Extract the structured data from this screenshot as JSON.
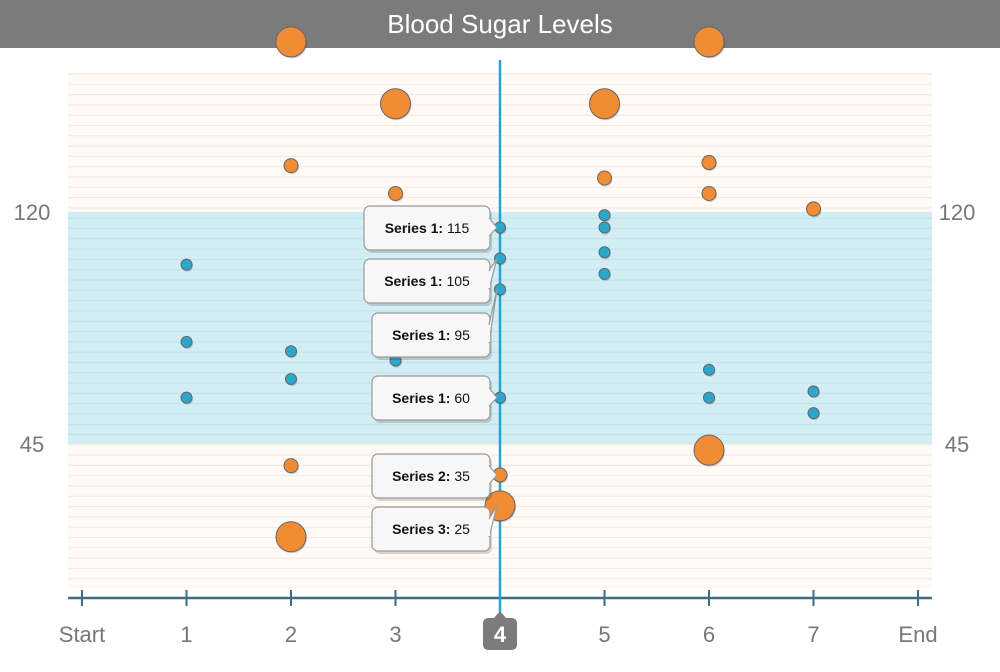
{
  "chart_data": {
    "type": "scatter",
    "title": "Blood Sugar Levels",
    "x_ticks": [
      "Start",
      "1",
      "2",
      "3",
      "4",
      "5",
      "6",
      "7",
      "End"
    ],
    "x_range": [
      0,
      8
    ],
    "y_range": [
      -10,
      190
    ],
    "y_ticks": [
      45,
      120
    ],
    "normal_band": [
      45,
      120
    ],
    "highlighted_x": "4",
    "colors": {
      "in_range": "#2aa7cd",
      "out_of_range": "#ef8c34",
      "band": "#d3edf4",
      "axis": "#3f6c7e",
      "crosshair": "#23a5cf"
    },
    "series": [
      {
        "name": "Series 1",
        "points": [
          {
            "x": 1,
            "y": 103
          },
          {
            "x": 1,
            "y": 78
          },
          {
            "x": 1,
            "y": 60
          },
          {
            "x": 2,
            "y": 75
          },
          {
            "x": 2,
            "y": 66
          },
          {
            "x": 3,
            "y": 72
          },
          {
            "x": 4,
            "y": 115
          },
          {
            "x": 4,
            "y": 105
          },
          {
            "x": 4,
            "y": 95
          },
          {
            "x": 4,
            "y": 60
          },
          {
            "x": 5,
            "y": 119
          },
          {
            "x": 5,
            "y": 115
          },
          {
            "x": 5,
            "y": 107
          },
          {
            "x": 5,
            "y": 100
          },
          {
            "x": 6,
            "y": 69
          },
          {
            "x": 6,
            "y": 60
          },
          {
            "x": 7,
            "y": 62
          },
          {
            "x": 7,
            "y": 55
          }
        ]
      },
      {
        "name": "Series 2",
        "points": [
          {
            "x": 2,
            "y": 135
          },
          {
            "x": 2,
            "y": 38
          },
          {
            "x": 3,
            "y": 126
          },
          {
            "x": 4,
            "y": 35
          },
          {
            "x": 5,
            "y": 131
          },
          {
            "x": 6,
            "y": 136
          },
          {
            "x": 6,
            "y": 126
          },
          {
            "x": 7,
            "y": 121
          }
        ]
      },
      {
        "name": "Series 3",
        "points": [
          {
            "x": 2,
            "y": 175
          },
          {
            "x": 2,
            "y": 15
          },
          {
            "x": 3,
            "y": 155
          },
          {
            "x": 3,
            "y": 33
          },
          {
            "x": 4,
            "y": 25
          },
          {
            "x": 5,
            "y": 155
          },
          {
            "x": 6,
            "y": 175
          },
          {
            "x": 6,
            "y": 43
          }
        ]
      }
    ],
    "tooltips": [
      {
        "series": "Series 1",
        "label": "Series 1:",
        "value": "115",
        "y": 115
      },
      {
        "series": "Series 1",
        "label": "Series 1:",
        "value": "105",
        "y": 105
      },
      {
        "series": "Series 1",
        "label": "Series 1:",
        "value": "95",
        "y": 95
      },
      {
        "series": "Series 1",
        "label": "Series 1:",
        "value": "60",
        "y": 60
      },
      {
        "series": "Series 2",
        "label": "Series 2:",
        "value": "35",
        "y": 35
      },
      {
        "series": "Series 3",
        "label": "Series 3:",
        "value": "25",
        "y": 25
      }
    ]
  }
}
